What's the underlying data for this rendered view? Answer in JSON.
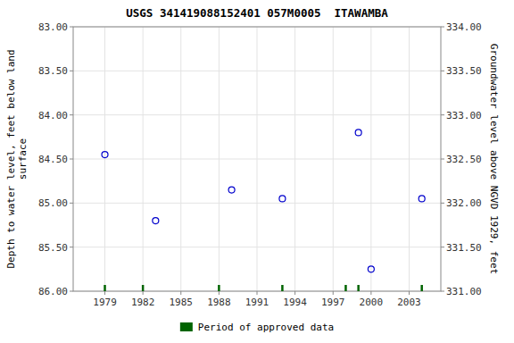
{
  "chart_data": {
    "type": "scatter",
    "title": "USGS 341419088152401 057M0005  ITAWAMBA",
    "ylabel": "Depth to water level, feet below land\nsurface",
    "y2label": "Groundwater level above NGVD 1929, feet",
    "xlim": [
      1976.5,
      2005.5
    ],
    "xticks": [
      1979,
      1982,
      1985,
      1988,
      1991,
      1994,
      1997,
      2000,
      2003
    ],
    "ylim": [
      86.0,
      83.0
    ],
    "yticks": [
      {
        "value": 83.0,
        "label": "83.00"
      },
      {
        "value": 83.5,
        "label": "83.50"
      },
      {
        "value": 84.0,
        "label": "84.00"
      },
      {
        "value": 84.5,
        "label": "84.50"
      },
      {
        "value": 85.0,
        "label": "85.00"
      },
      {
        "value": 85.5,
        "label": "85.50"
      },
      {
        "value": 86.0,
        "label": "86.00"
      }
    ],
    "y2lim": [
      331.0,
      334.0
    ],
    "y2ticks": [
      {
        "value": 334.0,
        "label": "334.00"
      },
      {
        "value": 333.5,
        "label": "333.50"
      },
      {
        "value": 333.0,
        "label": "333.00"
      },
      {
        "value": 332.5,
        "label": "332.50"
      },
      {
        "value": 332.0,
        "label": "332.00"
      },
      {
        "value": 331.5,
        "label": "331.50"
      },
      {
        "value": 331.0,
        "label": "331.00"
      }
    ],
    "grid": true,
    "legend": "bottom",
    "series": [
      {
        "type": "scatter",
        "color": "#0000cc",
        "marker": "open-circle",
        "x": [
          1979,
          1983,
          1989,
          1993,
          1999,
          2000,
          2004
        ],
        "values": [
          84.45,
          85.2,
          84.85,
          84.95,
          84.2,
          85.75,
          84.95
        ]
      },
      {
        "name": "Period of approved data",
        "type": "rug",
        "color": "#006400",
        "x": [
          1979,
          1982,
          1988,
          1993,
          1998,
          1999,
          2004
        ]
      }
    ]
  }
}
